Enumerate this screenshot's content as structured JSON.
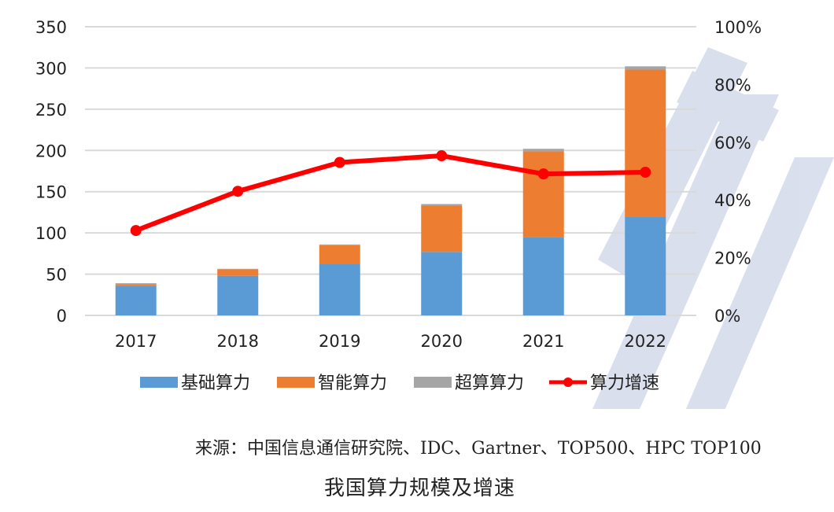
{
  "chart_data": {
    "type": "bar",
    "subtype": "stacked-bar-with-line",
    "title": "我国算力规模及增速",
    "source": "来源：中国信息通信研究院、IDC、Gartner、TOP500、HPC TOP100",
    "categories": [
      "2017",
      "2018",
      "2019",
      "2020",
      "2021",
      "2022"
    ],
    "series": [
      {
        "name": "基础算力",
        "type": "bar",
        "axis": "left",
        "color": "#5b9bd5",
        "values": [
          36,
          48,
          62,
          77,
          95,
          120
        ]
      },
      {
        "name": "智能算力",
        "type": "bar",
        "axis": "left",
        "color": "#ed7d31",
        "values": [
          2,
          8,
          23,
          56,
          104,
          178
        ]
      },
      {
        "name": "超算算力",
        "type": "bar",
        "axis": "left",
        "color": "#a5a5a5",
        "values": [
          1,
          0.5,
          1,
          2,
          3,
          4
        ]
      },
      {
        "name": "算力增速",
        "type": "line",
        "axis": "right",
        "color": "#ff0000",
        "values": [
          29.4,
          43,
          53,
          55.3,
          49,
          49.6
        ]
      }
    ],
    "y_left": {
      "ylim": [
        0,
        350
      ],
      "ticks": [
        "0",
        "50",
        "100",
        "150",
        "200",
        "250",
        "300",
        "350"
      ]
    },
    "y_right": {
      "ylim": [
        0,
        100
      ],
      "ticks": [
        "0%",
        "20%",
        "40%",
        "60%",
        "80%",
        "100%"
      ]
    },
    "xlabel": "",
    "ylabel": "",
    "grid": true,
    "legend": "bottom"
  }
}
